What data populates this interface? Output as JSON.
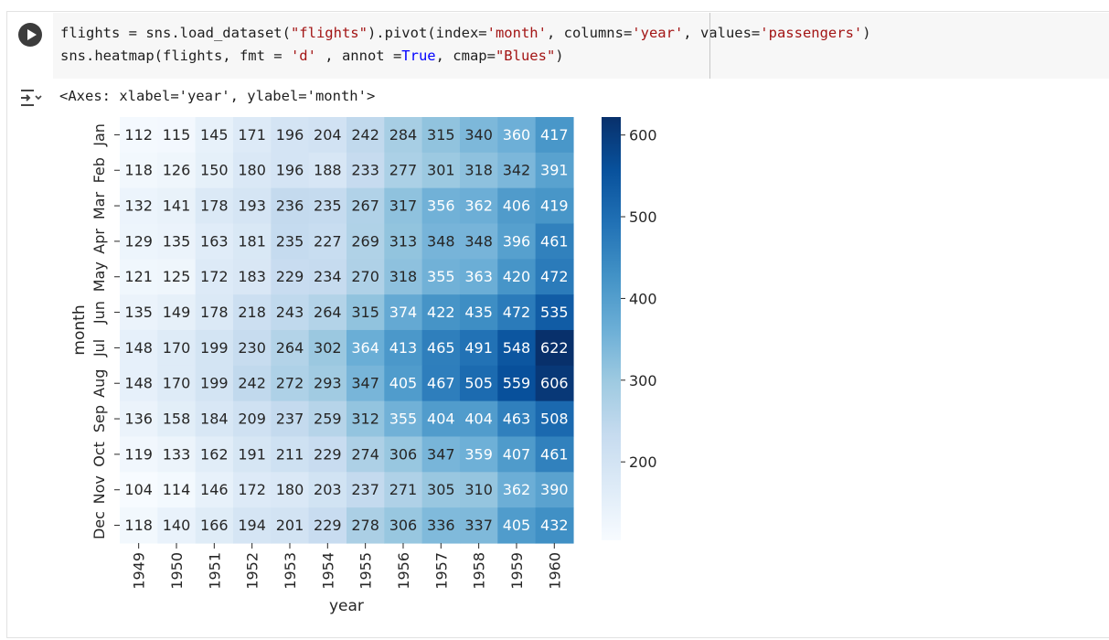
{
  "code": {
    "line1": [
      "flights = sns.load_dataset(",
      "\"flights\"",
      ").pivot(index=",
      "'month'",
      ", columns=",
      "'year'",
      ", values=",
      "'passengers'",
      ")"
    ],
    "line2": [
      "sns.heatmap(flights, fmt = ",
      "'d'",
      " , annot =",
      "True",
      ", cmap=",
      "\"Blues\"",
      ")"
    ]
  },
  "output": {
    "axes_text": "<Axes: xlabel='year', ylabel='month'>"
  },
  "icons": {
    "run": "play-icon",
    "output_toggle": "output-collapse-icon"
  },
  "chart_data": {
    "type": "heatmap",
    "xlabel": "year",
    "ylabel": "month",
    "colormap": "Blues",
    "x_categories": [
      "1949",
      "1950",
      "1951",
      "1952",
      "1953",
      "1954",
      "1955",
      "1956",
      "1957",
      "1958",
      "1959",
      "1960"
    ],
    "y_categories": [
      "Jan",
      "Feb",
      "Mar",
      "Apr",
      "May",
      "Jun",
      "Jul",
      "Aug",
      "Sep",
      "Oct",
      "Nov",
      "Dec"
    ],
    "values": [
      [
        112,
        115,
        145,
        171,
        196,
        204,
        242,
        284,
        315,
        340,
        360,
        417
      ],
      [
        118,
        126,
        150,
        180,
        196,
        188,
        233,
        277,
        301,
        318,
        342,
        391
      ],
      [
        132,
        141,
        178,
        193,
        236,
        235,
        267,
        317,
        356,
        362,
        406,
        419
      ],
      [
        129,
        135,
        163,
        181,
        235,
        227,
        269,
        313,
        348,
        348,
        396,
        461
      ],
      [
        121,
        125,
        172,
        183,
        229,
        234,
        270,
        318,
        355,
        363,
        420,
        472
      ],
      [
        135,
        149,
        178,
        218,
        243,
        264,
        315,
        374,
        422,
        435,
        472,
        535
      ],
      [
        148,
        170,
        199,
        230,
        264,
        302,
        364,
        413,
        465,
        491,
        548,
        622
      ],
      [
        148,
        170,
        199,
        242,
        272,
        293,
        347,
        405,
        467,
        505,
        559,
        606
      ],
      [
        136,
        158,
        184,
        209,
        237,
        259,
        312,
        355,
        404,
        404,
        463,
        508
      ],
      [
        119,
        133,
        162,
        191,
        211,
        229,
        274,
        306,
        347,
        359,
        407,
        461
      ],
      [
        104,
        114,
        146,
        172,
        180,
        203,
        237,
        271,
        305,
        310,
        362,
        390
      ],
      [
        118,
        140,
        166,
        194,
        201,
        229,
        278,
        306,
        336,
        337,
        405,
        432
      ]
    ],
    "colorbar": {
      "range": [
        104,
        622
      ],
      "ticks": [
        200,
        300,
        400,
        500,
        600
      ]
    }
  }
}
